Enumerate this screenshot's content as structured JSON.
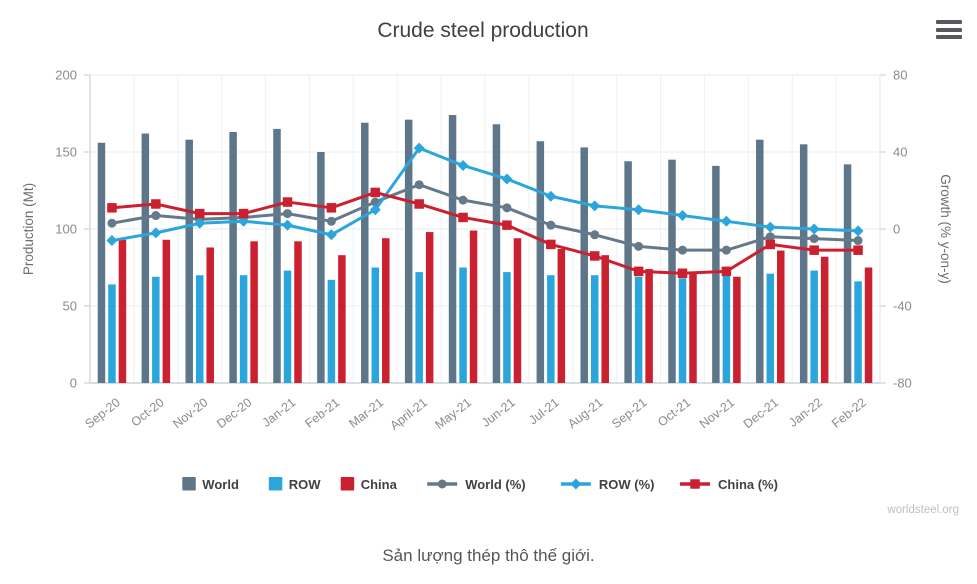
{
  "icons": {
    "menu": "hamburger-menu"
  },
  "footer": {
    "credit": "worldsteel.org"
  },
  "caption": {
    "text": "Sản lượng thép thô thế giới."
  },
  "chart_data": {
    "type": "bar+line",
    "title": "Crude steel production",
    "legend_position": "bottom",
    "grid": true,
    "categories": [
      "Sep-20",
      "Oct-20",
      "Nov-20",
      "Dec-20",
      "Jan-21",
      "Feb-21",
      "Mar-21",
      "April-21",
      "May-21",
      "Jun-21",
      "Jul-21",
      "Aug-21",
      "Sep-21",
      "Oct-21",
      "Nov-21",
      "Dec-21",
      "Jan-22",
      "Feb-22"
    ],
    "left_axis": {
      "label": "Production (Mt)",
      "min": 0,
      "max": 200,
      "ticks": [
        0,
        50,
        100,
        150,
        200
      ]
    },
    "right_axis": {
      "label": "Growth (% y-on-y)",
      "min": -80,
      "max": 80,
      "ticks": [
        -80,
        -40,
        0,
        40,
        80
      ]
    },
    "bar_series": [
      {
        "name": "World",
        "color": "#5D7689",
        "values": [
          156,
          162,
          158,
          163,
          165,
          150,
          169,
          171,
          174,
          168,
          157,
          153,
          144,
          145,
          141,
          158,
          155,
          142
        ]
      },
      {
        "name": "ROW",
        "color": "#2BA6DC",
        "values": [
          64,
          69,
          70,
          70,
          73,
          67,
          75,
          72,
          75,
          72,
          70,
          70,
          69,
          68,
          70,
          71,
          73,
          66
        ]
      },
      {
        "name": "China",
        "color": "#CB2030",
        "values": [
          93,
          93,
          88,
          92,
          92,
          83,
          94,
          98,
          99,
          94,
          87,
          83,
          74,
          71,
          69,
          86,
          82,
          75
        ]
      }
    ],
    "line_series": [
      {
        "name": "World (%)",
        "color": "#64798A",
        "marker": "circle",
        "values": [
          3,
          7,
          5,
          6,
          8,
          4,
          14,
          23,
          15,
          11,
          2,
          -3,
          -9,
          -11,
          -11,
          -4,
          -5,
          -6
        ]
      },
      {
        "name": "ROW (%)",
        "color": "#2BA6DC",
        "marker": "diamond",
        "values": [
          -6,
          -2,
          3,
          4,
          2,
          -3,
          10,
          42,
          33,
          26,
          17,
          12,
          10,
          7,
          4,
          1,
          0,
          -1
        ]
      },
      {
        "name": "China (%)",
        "color": "#CB2030",
        "marker": "square",
        "values": [
          11,
          13,
          8,
          8,
          14,
          11,
          19,
          13,
          6,
          2,
          -8,
          -14,
          -22,
          -23,
          -22,
          -8,
          -11,
          -11
        ]
      }
    ]
  }
}
